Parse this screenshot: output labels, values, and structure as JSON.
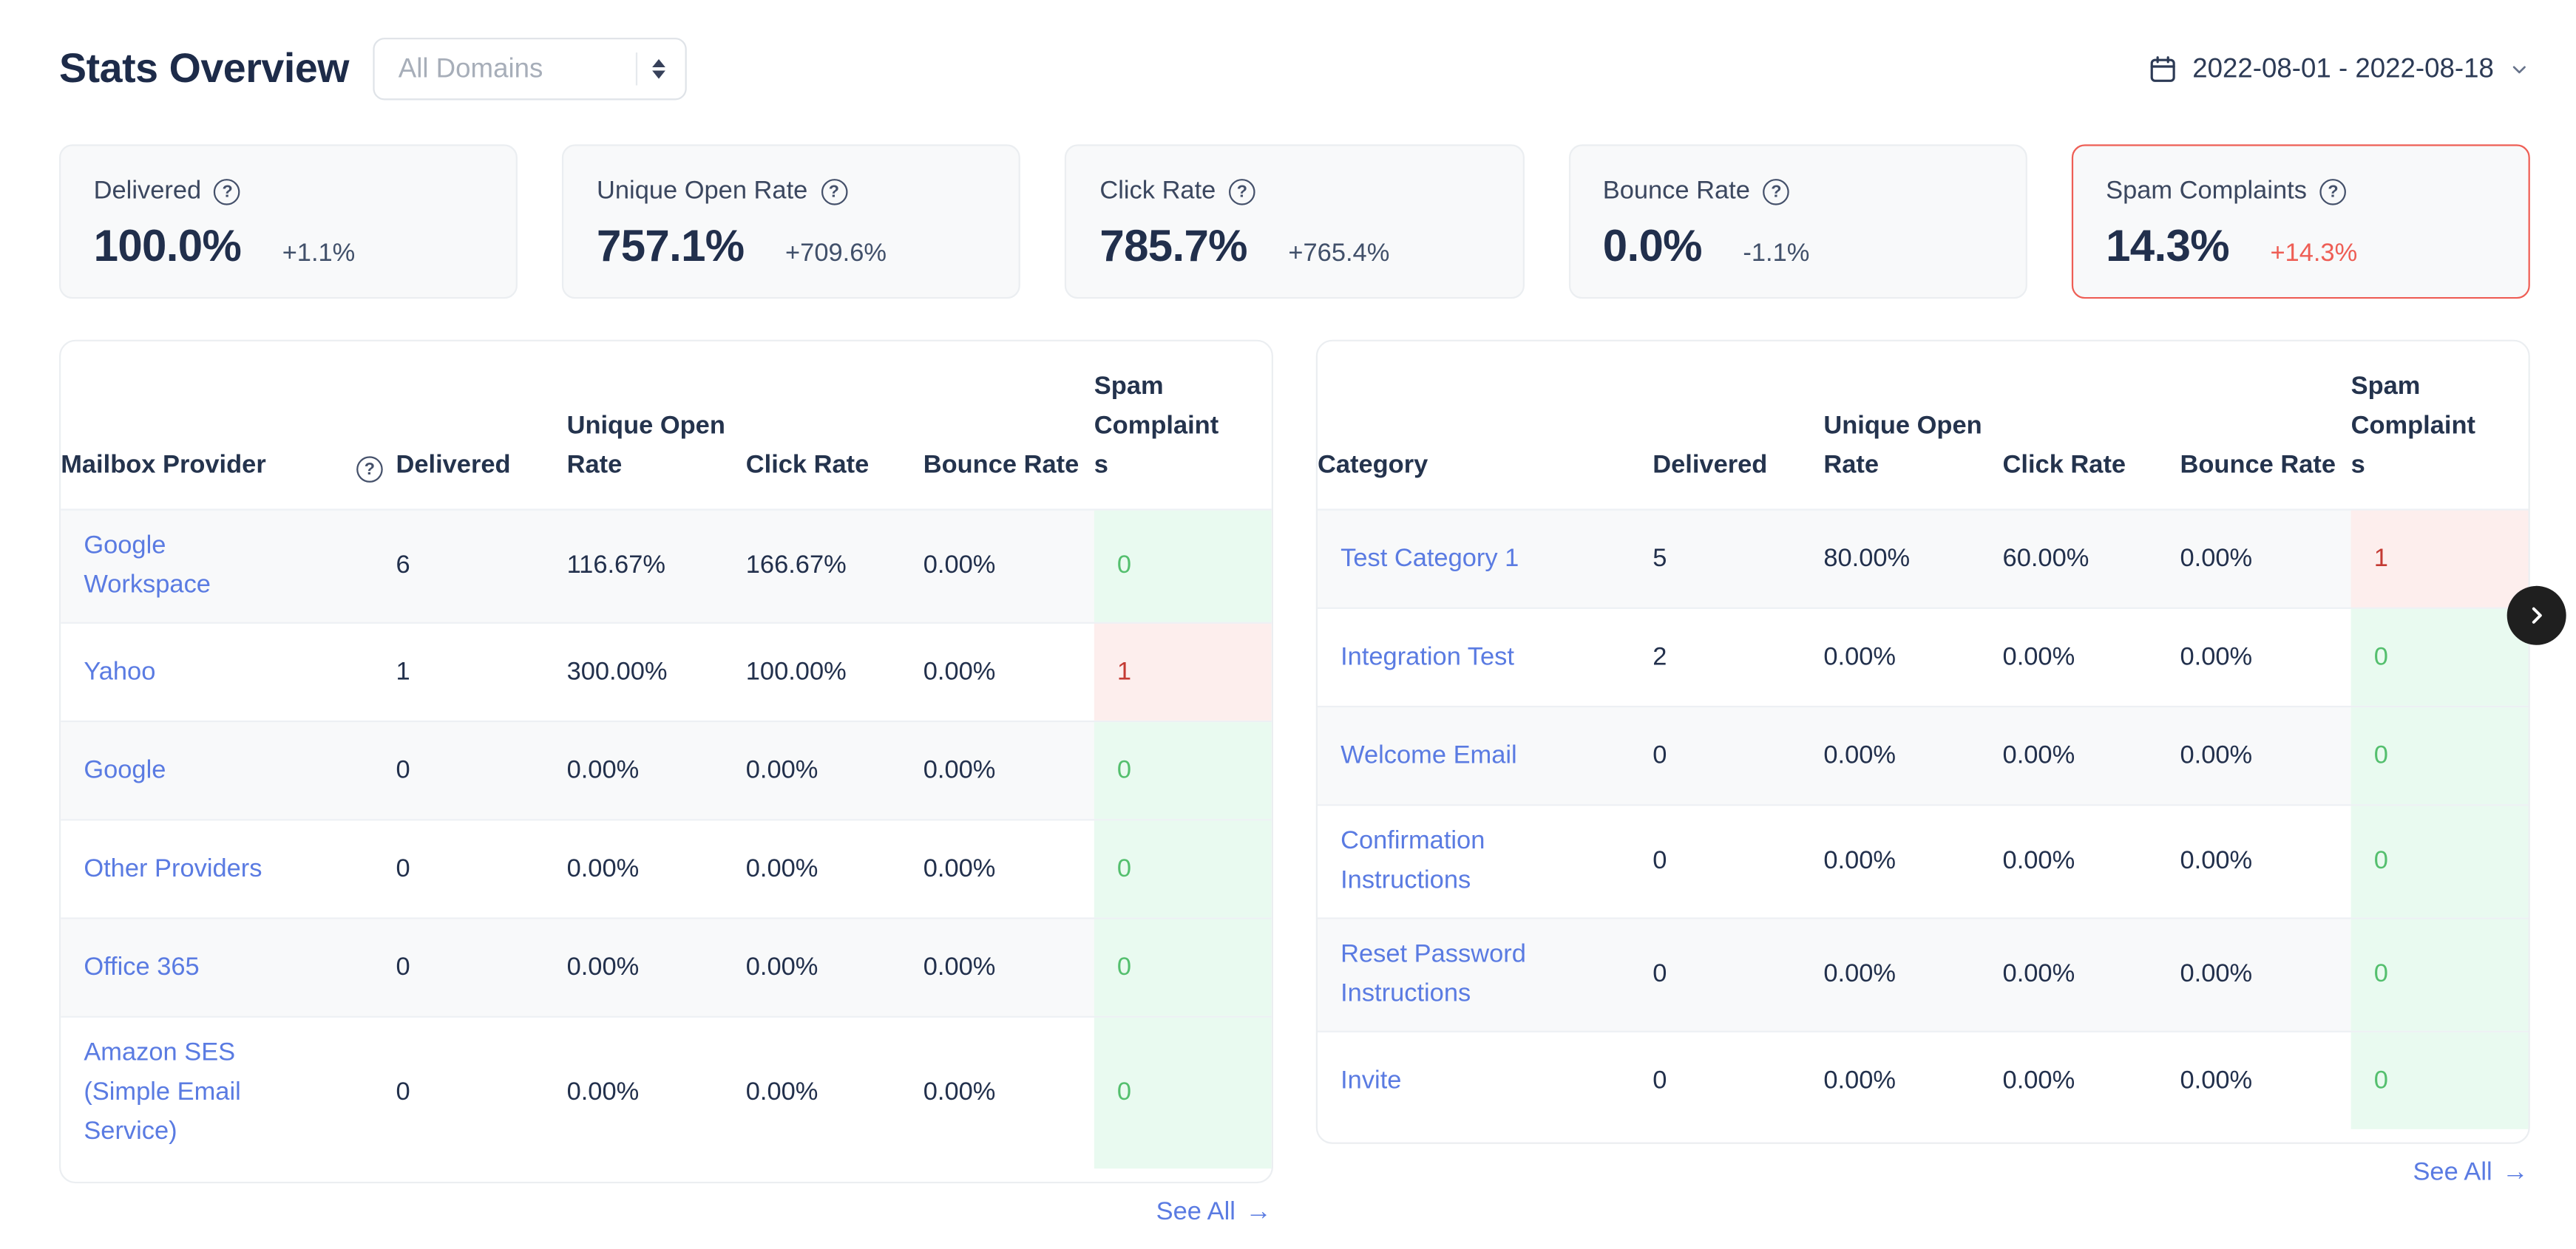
{
  "header": {
    "title": "Stats Overview",
    "domain_select": {
      "value": "All Domains"
    },
    "date_range": "2022-08-01 - 2022-08-18"
  },
  "stat_cards": [
    {
      "label": "Delivered",
      "value": "100.0%",
      "delta": "+1.1%",
      "delta_color": "default",
      "highlight": false
    },
    {
      "label": "Unique Open Rate",
      "value": "757.1%",
      "delta": "+709.6%",
      "delta_color": "default",
      "highlight": false
    },
    {
      "label": "Click Rate",
      "value": "785.7%",
      "delta": "+765.4%",
      "delta_color": "default",
      "highlight": false
    },
    {
      "label": "Bounce Rate",
      "value": "0.0%",
      "delta": "-1.1%",
      "delta_color": "default",
      "highlight": false
    },
    {
      "label": "Spam Complaints",
      "value": "14.3%",
      "delta": "+14.3%",
      "delta_color": "red",
      "highlight": true
    }
  ],
  "tables": [
    {
      "id": "mailbox-provider",
      "columns": [
        "Mailbox Provider",
        "Delivered",
        "Unique Open Rate",
        "Click Rate",
        "Bounce Rate",
        "Spam Complaints"
      ],
      "has_help_icon": true,
      "see_all_label": "See All",
      "rows": [
        {
          "name": "Google Workspace",
          "delivered": "6",
          "unique_open_rate": "116.67%",
          "click_rate": "166.67%",
          "bounce_rate": "0.00%",
          "spam_complaints": "0",
          "spam_status": "good"
        },
        {
          "name": "Yahoo",
          "delivered": "1",
          "unique_open_rate": "300.00%",
          "click_rate": "100.00%",
          "bounce_rate": "0.00%",
          "spam_complaints": "1",
          "spam_status": "bad"
        },
        {
          "name": "Google",
          "delivered": "0",
          "unique_open_rate": "0.00%",
          "click_rate": "0.00%",
          "bounce_rate": "0.00%",
          "spam_complaints": "0",
          "spam_status": "good"
        },
        {
          "name": "Other Providers",
          "delivered": "0",
          "unique_open_rate": "0.00%",
          "click_rate": "0.00%",
          "bounce_rate": "0.00%",
          "spam_complaints": "0",
          "spam_status": "good"
        },
        {
          "name": "Office 365",
          "delivered": "0",
          "unique_open_rate": "0.00%",
          "click_rate": "0.00%",
          "bounce_rate": "0.00%",
          "spam_complaints": "0",
          "spam_status": "good"
        },
        {
          "name": "Amazon SES (Simple Email Service)",
          "delivered": "0",
          "unique_open_rate": "0.00%",
          "click_rate": "0.00%",
          "bounce_rate": "0.00%",
          "spam_complaints": "0",
          "spam_status": "good"
        }
      ]
    },
    {
      "id": "category",
      "columns": [
        "Category",
        "Delivered",
        "Unique Open Rate",
        "Click Rate",
        "Bounce Rate",
        "Spam Complaints"
      ],
      "has_help_icon": false,
      "see_all_label": "See All",
      "rows": [
        {
          "name": "Test Category 1",
          "delivered": "5",
          "unique_open_rate": "80.00%",
          "click_rate": "60.00%",
          "bounce_rate": "0.00%",
          "spam_complaints": "1",
          "spam_status": "bad"
        },
        {
          "name": "Integration Test",
          "delivered": "2",
          "unique_open_rate": "0.00%",
          "click_rate": "0.00%",
          "bounce_rate": "0.00%",
          "spam_complaints": "0",
          "spam_status": "good"
        },
        {
          "name": "Welcome Email",
          "delivered": "0",
          "unique_open_rate": "0.00%",
          "click_rate": "0.00%",
          "bounce_rate": "0.00%",
          "spam_complaints": "0",
          "spam_status": "good"
        },
        {
          "name": "Confirmation Instructions",
          "delivered": "0",
          "unique_open_rate": "0.00%",
          "click_rate": "0.00%",
          "bounce_rate": "0.00%",
          "spam_complaints": "0",
          "spam_status": "good"
        },
        {
          "name": "Reset Password Instructions",
          "delivered": "0",
          "unique_open_rate": "0.00%",
          "click_rate": "0.00%",
          "bounce_rate": "0.00%",
          "spam_complaints": "0",
          "spam_status": "good"
        },
        {
          "name": "Invite",
          "delivered": "0",
          "unique_open_rate": "0.00%",
          "click_rate": "0.00%",
          "bounce_rate": "0.00%",
          "spam_complaints": "0",
          "spam_status": "good"
        }
      ]
    }
  ],
  "icons": {
    "question_mark": "?",
    "arrow_right": "→",
    "calendar": "calendar-outline",
    "chevron_down": "chevron-down",
    "select_spinner": "up-down-triangles",
    "chevron_right": "chevron-right"
  },
  "colors": {
    "navy": "#22304c",
    "head": "#24334d",
    "link": "#5a7be2",
    "muted": "#a7aeb9",
    "green": "#54bf6e",
    "green_bg": "#e9faf0",
    "red": "#c43a33",
    "red_bg": "#fdeeed",
    "alert": "#ee5e55",
    "card_bg": "#f8f9fa",
    "card_border": "#ebeef1",
    "row_alt": "#f8f9fa",
    "divider": "#edf0f4",
    "select_border": "#dfe3e8",
    "btn_black": "#1f1f1f"
  }
}
